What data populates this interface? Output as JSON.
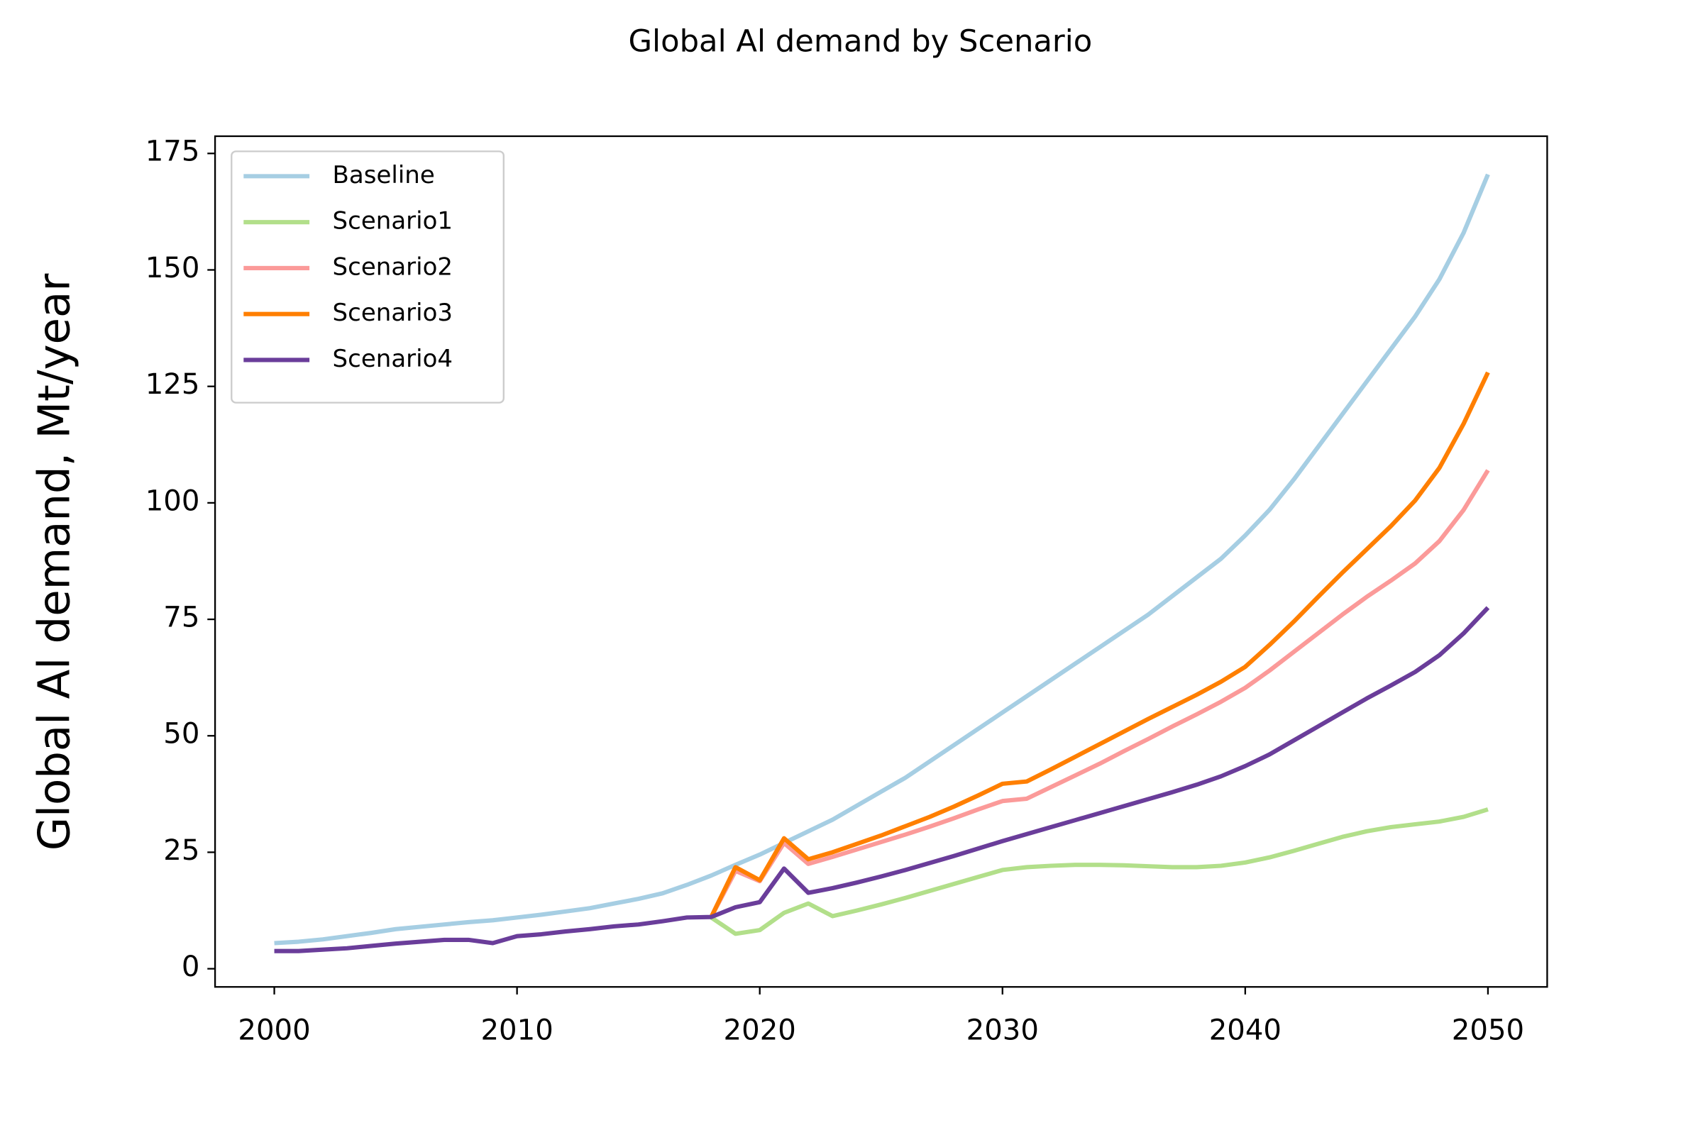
{
  "chart_data": {
    "type": "line",
    "title": "Global Al demand by Scenario",
    "y_label": "Global Al demand, Mt/year",
    "x": [
      2000,
      2001,
      2002,
      2003,
      2004,
      2005,
      2006,
      2007,
      2008,
      2009,
      2010,
      2011,
      2012,
      2013,
      2014,
      2015,
      2016,
      2017,
      2018,
      2019,
      2020,
      2021,
      2022,
      2023,
      2024,
      2025,
      2026,
      2027,
      2028,
      2029,
      2030,
      2031,
      2032,
      2033,
      2034,
      2035,
      2036,
      2037,
      2038,
      2039,
      2040,
      2041,
      2042,
      2043,
      2044,
      2045,
      2046,
      2047,
      2048,
      2049,
      2050
    ],
    "series": [
      {
        "name": "Baseline",
        "color": "#a6cee3",
        "values": [
          5.5,
          5.8,
          6.3,
          7,
          7.7,
          8.5,
          9,
          9.5,
          10,
          10.4,
          11,
          11.6,
          12.3,
          13,
          14,
          15,
          16.2,
          18,
          20,
          22.3,
          24.5,
          27,
          29.5,
          32,
          35,
          38,
          41,
          44.5,
          48,
          51.5,
          55,
          58.5,
          62,
          65.5,
          69,
          72.5,
          76,
          80,
          84,
          88,
          93,
          98.5,
          105,
          112,
          119,
          126,
          133,
          140,
          148,
          158,
          170.5
        ]
      },
      {
        "name": "Scenario1",
        "color": "#b2df8a",
        "values": [
          null,
          null,
          null,
          null,
          null,
          null,
          null,
          null,
          null,
          null,
          null,
          null,
          null,
          null,
          null,
          null,
          null,
          null,
          11,
          7.5,
          8.3,
          12,
          14,
          11.3,
          12.5,
          13.8,
          15.2,
          16.7,
          18.2,
          19.7,
          21.2,
          21.8,
          22.1,
          22.3,
          22.3,
          22.2,
          22,
          21.8,
          21.8,
          22.1,
          22.8,
          23.9,
          25.3,
          26.8,
          28.3,
          29.5,
          30.4,
          31,
          31.6,
          32.6,
          34.2
        ]
      },
      {
        "name": "Scenario2",
        "color": "#fb9a99",
        "values": [
          null,
          null,
          null,
          null,
          null,
          null,
          null,
          null,
          null,
          null,
          null,
          null,
          null,
          null,
          null,
          null,
          null,
          null,
          11.1,
          21,
          18.8,
          27,
          22.5,
          24,
          25.6,
          27.2,
          28.8,
          30.5,
          32.3,
          34.2,
          36,
          36.5,
          39,
          41.5,
          44,
          46.7,
          49.3,
          52,
          54.6,
          57.3,
          60.3,
          64,
          68,
          72,
          76,
          79.8,
          83.3,
          87,
          91.8,
          98.5,
          107
        ]
      },
      {
        "name": "Scenario3",
        "color": "#ff7f00",
        "values": [
          null,
          null,
          null,
          null,
          null,
          null,
          null,
          null,
          null,
          null,
          null,
          null,
          null,
          null,
          null,
          null,
          null,
          null,
          11.1,
          21.8,
          19,
          28,
          23.5,
          25,
          26.8,
          28.6,
          30.6,
          32.6,
          34.8,
          37.2,
          39.7,
          40.2,
          42.8,
          45.5,
          48.2,
          50.9,
          53.6,
          56.2,
          58.8,
          61.6,
          64.8,
          69.5,
          74.5,
          79.8,
          85,
          90,
          95,
          100.5,
          107.5,
          117,
          128
        ]
      },
      {
        "name": "Scenario4",
        "color": "#6a3d9a",
        "values": [
          3.8,
          3.8,
          4.1,
          4.4,
          4.9,
          5.4,
          5.8,
          6.2,
          6.2,
          5.5,
          7,
          7.4,
          8,
          8.5,
          9.1,
          9.5,
          10.2,
          11,
          11.1,
          13.2,
          14.3,
          21.5,
          16.3,
          17.3,
          18.5,
          19.8,
          21.2,
          22.7,
          24.2,
          25.8,
          27.4,
          28.9,
          30.4,
          31.9,
          33.4,
          34.9,
          36.4,
          37.9,
          39.5,
          41.3,
          43.5,
          46,
          49,
          52,
          55,
          58,
          60.8,
          63.7,
          67.3,
          72,
          77.5
        ]
      }
    ],
    "xlim": [
      1997.56,
      2052.44
    ],
    "ylim": [
      -3.9,
      178.7
    ],
    "xticks": [
      2000,
      2010,
      2020,
      2030,
      2040,
      2050
    ],
    "yticks": [
      0,
      25,
      50,
      75,
      100,
      125,
      150,
      175
    ],
    "legend": "upper left"
  }
}
